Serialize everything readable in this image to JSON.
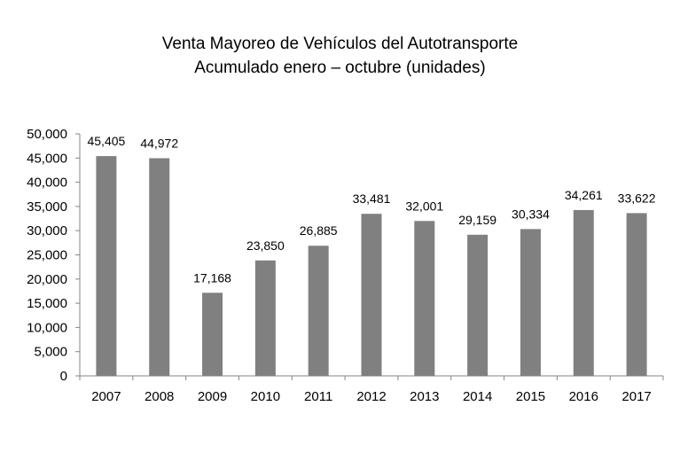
{
  "chart_data": {
    "type": "bar",
    "title": "Venta Mayoreo de Vehículos del Autotransporte",
    "subtitle": "Acumulado enero – octubre (unidades)",
    "xlabel": "",
    "ylabel": "",
    "categories": [
      "2007",
      "2008",
      "2009",
      "2010",
      "2011",
      "2012",
      "2013",
      "2014",
      "2015",
      "2016",
      "2017"
    ],
    "values": [
      45405,
      44972,
      17168,
      23850,
      26885,
      33481,
      32001,
      29159,
      30334,
      34261,
      33622
    ],
    "data_labels": [
      "45,405",
      "44,972",
      "17,168",
      "23,850",
      "26,885",
      "33,481",
      "32,001",
      "29,159",
      "30,334",
      "34,261",
      "33,622"
    ],
    "ylim": [
      0,
      50000
    ],
    "yticks": [
      0,
      5000,
      10000,
      15000,
      20000,
      25000,
      30000,
      35000,
      40000,
      45000,
      50000
    ],
    "ytick_labels": [
      "0",
      "5,000",
      "10,000",
      "15,000",
      "20,000",
      "25,000",
      "30,000",
      "35,000",
      "40,000",
      "45,000",
      "50,000"
    ],
    "grid": false,
    "legend": "none",
    "bar_color": "#808080"
  }
}
